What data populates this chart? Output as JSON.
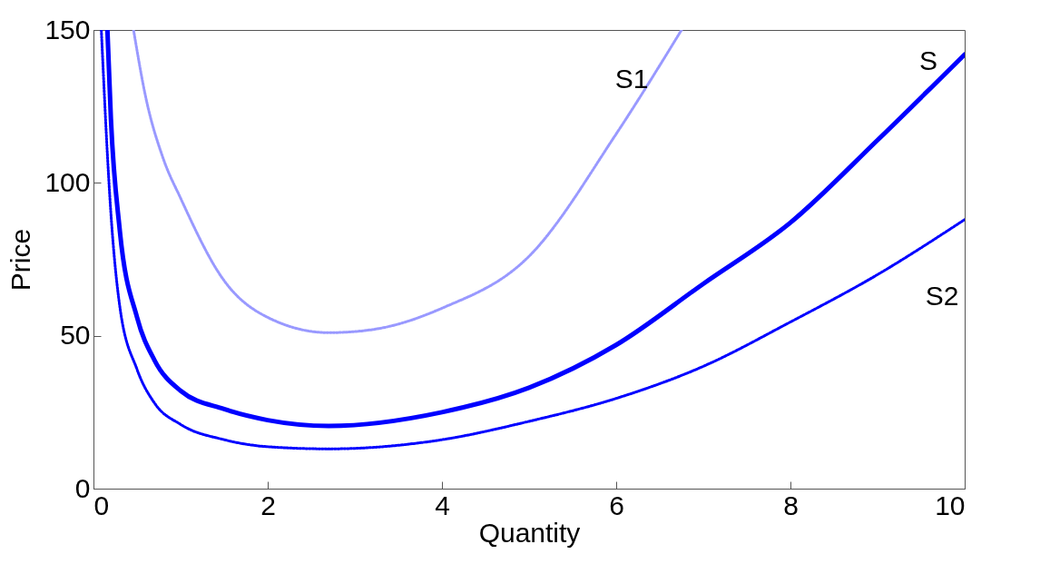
{
  "chart_data": {
    "type": "line",
    "xlabel": "Quantity",
    "ylabel": "Price",
    "xlim": [
      0,
      10
    ],
    "ylim": [
      0,
      150
    ],
    "xticks": [
      0,
      2,
      4,
      6,
      8,
      10
    ],
    "yticks": [
      0,
      50,
      100,
      150
    ],
    "grid": false,
    "marker": "none",
    "series": [
      {
        "name": "S1",
        "color": "#9999ff",
        "line_style": "dotted",
        "x": [
          0.46,
          0.6,
          0.8,
          1,
          1.5,
          2,
          2.7,
          3.2,
          4,
          5,
          6,
          6.75
        ],
        "values": [
          150,
          128,
          108,
          95,
          68,
          56,
          51,
          52,
          59,
          76,
          116,
          150
        ]
      },
      {
        "name": "S",
        "color": "#0000ff",
        "line_style": "solid",
        "x": [
          0.16,
          0.2,
          0.3,
          0.5,
          0.7,
          1,
          1.5,
          2,
          2.7,
          4,
          5,
          6,
          7,
          8,
          9,
          10
        ],
        "values": [
          150,
          121,
          85,
          56,
          42,
          32,
          26,
          22.4,
          20.5,
          25,
          33,
          47,
          67,
          87,
          114,
          142
        ]
      },
      {
        "name": "S2",
        "color": "#0000ff",
        "line_style": "dotted",
        "x": [
          0.09,
          0.2,
          0.3,
          0.5,
          0.7,
          1,
          1.5,
          2,
          2.7,
          4,
          5,
          6,
          7,
          8,
          9,
          10
        ],
        "values": [
          150,
          90,
          60,
          39,
          28,
          21,
          16,
          13.7,
          13,
          16,
          22,
          29.5,
          40,
          54.5,
          70,
          88
        ]
      }
    ]
  }
}
